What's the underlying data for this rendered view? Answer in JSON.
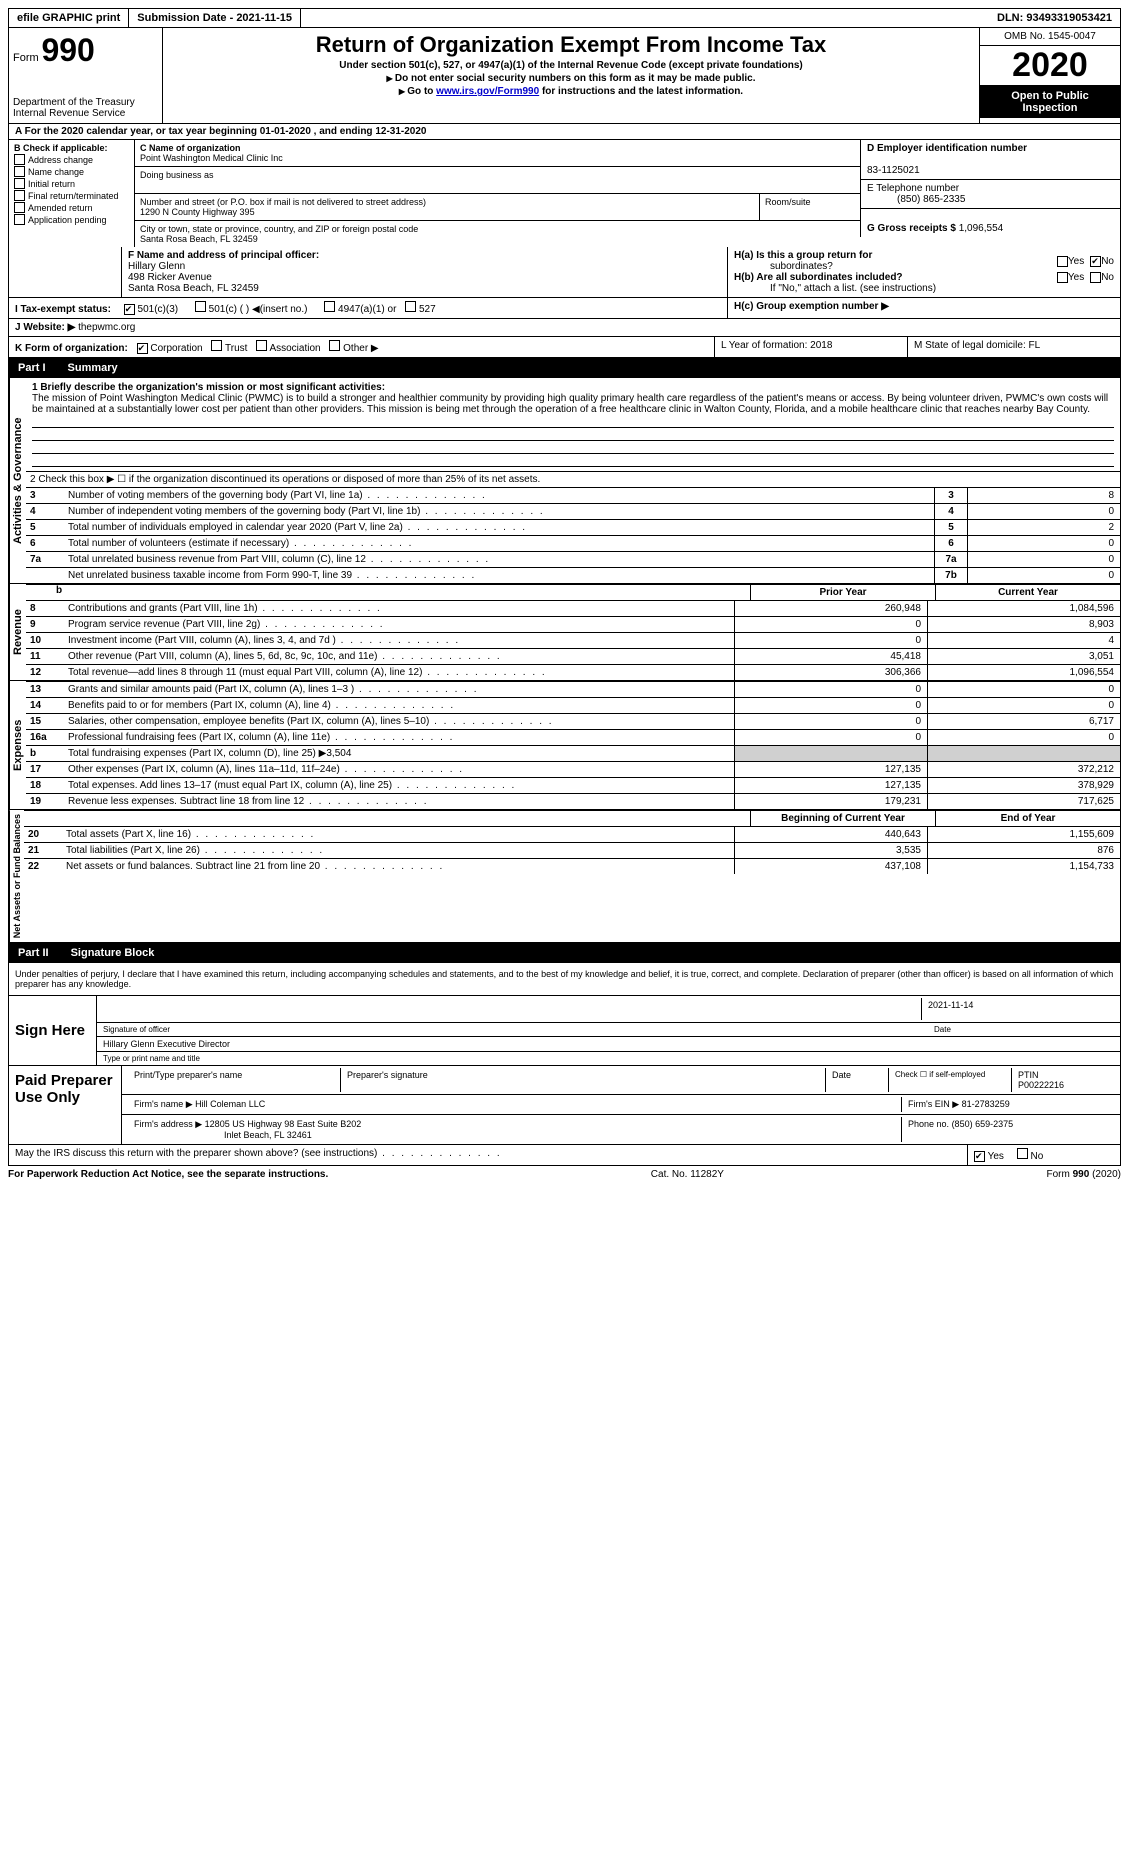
{
  "top": {
    "efile": "efile GRAPHIC print",
    "submission_label": "Submission Date - 2021-11-15",
    "dln_label": "DLN: 93493319053421"
  },
  "header": {
    "form_word": "Form",
    "form_num": "990",
    "dept": "Department of the Treasury\nInternal Revenue Service",
    "title": "Return of Organization Exempt From Income Tax",
    "subtitle1": "Under section 501(c), 527, or 4947(a)(1) of the Internal Revenue Code (except private foundations)",
    "subtitle2": "Do not enter social security numbers on this form as it may be made public.",
    "goto_pre": "Go to ",
    "goto_url": "www.irs.gov/Form990",
    "goto_post": " for instructions and the latest information.",
    "omb": "OMB No. 1545-0047",
    "year": "2020",
    "open1": "Open to Public",
    "open2": "Inspection"
  },
  "rowA": "A For the 2020 calendar year, or tax year beginning 01-01-2020   , and ending 12-31-2020",
  "colB": {
    "label": "B Check if applicable:",
    "items": [
      "Address change",
      "Name change",
      "Initial return",
      "Final return/terminated",
      "Amended return",
      "Application pending"
    ]
  },
  "colC": {
    "name_label": "C Name of organization",
    "name": "Point Washington Medical Clinic Inc",
    "dba_label": "Doing business as",
    "street_label": "Number and street (or P.O. box if mail is not delivered to street address)",
    "street": "1290 N County Highway 395",
    "room_label": "Room/suite",
    "city_label": "City or town, state or province, country, and ZIP or foreign postal code",
    "city": "Santa Rosa Beach, FL  32459"
  },
  "colD": {
    "ein_label": "D Employer identification number",
    "ein": "83-1125021",
    "tel_label": "E Telephone number",
    "tel": "(850) 865-2335",
    "gross_label": "G Gross receipts $",
    "gross": "1,096,554"
  },
  "rowF": {
    "label": "F  Name and address of principal officer:",
    "name": "Hillary Glenn",
    "addr1": "498 Ricker Avenue",
    "addr2": "Santa Rosa Beach, FL  32459"
  },
  "rowH": {
    "ha_label": "H(a)  Is this a group return for",
    "ha_label2": "subordinates?",
    "hb_label": "H(b)  Are all subordinates included?",
    "hb_note": "If \"No,\" attach a list. (see instructions)",
    "hc_label": "H(c)  Group exemption number ▶",
    "yes": "Yes",
    "no": "No"
  },
  "rowI": {
    "label": "I    Tax-exempt status:",
    "opt1": "501(c)(3)",
    "opt2": "501(c) (  )",
    "opt2b": "(insert no.)",
    "opt3": "4947(a)(1) or",
    "opt4": "527"
  },
  "rowJ": {
    "label": "J   Website: ▶",
    "val": "thepwmc.org"
  },
  "rowK": {
    "label": "K Form of organization:",
    "opts": [
      "Corporation",
      "Trust",
      "Association",
      "Other ▶"
    ],
    "L": "L Year of formation: 2018",
    "M": "M State of legal domicile: FL"
  },
  "part1": {
    "num": "Part I",
    "title": "Summary"
  },
  "mission": {
    "label": "1   Briefly describe the organization's mission or most significant activities:",
    "text": "The mission of Point Washington Medical Clinic (PWMC) is to build a stronger and healthier community by providing high quality primary health care regardless of the patient's means or access. By being volunteer driven, PWMC's own costs will be maintained at a substantially lower cost per patient than other providers. This mission is being met through the operation of a free healthcare clinic in Walton County, Florida, and a mobile healthcare clinic that reaches nearby Bay County."
  },
  "checkbox2": "2   Check this box ▶ ☐  if the organization discontinued its operations or disposed of more than 25% of its net assets.",
  "govLines": [
    {
      "n": "3",
      "t": "Number of voting members of the governing body (Part VI, line 1a)",
      "k": "3",
      "v": "8"
    },
    {
      "n": "4",
      "t": "Number of independent voting members of the governing body (Part VI, line 1b)",
      "k": "4",
      "v": "0"
    },
    {
      "n": "5",
      "t": "Total number of individuals employed in calendar year 2020 (Part V, line 2a)",
      "k": "5",
      "v": "2"
    },
    {
      "n": "6",
      "t": "Total number of volunteers (estimate if necessary)",
      "k": "6",
      "v": "0"
    },
    {
      "n": "7a",
      "t": "Total unrelated business revenue from Part VIII, column (C), line 12",
      "k": "7a",
      "v": "0"
    },
    {
      "n": "",
      "t": "Net unrelated business taxable income from Form 990-T, line 39",
      "k": "7b",
      "v": "0"
    }
  ],
  "cols": {
    "prior": "Prior Year",
    "current": "Current Year"
  },
  "revenue": [
    {
      "n": "8",
      "t": "Contributions and grants (Part VIII, line 1h)",
      "p": "260,948",
      "c": "1,084,596"
    },
    {
      "n": "9",
      "t": "Program service revenue (Part VIII, line 2g)",
      "p": "0",
      "c": "8,903"
    },
    {
      "n": "10",
      "t": "Investment income (Part VIII, column (A), lines 3, 4, and 7d )",
      "p": "0",
      "c": "4"
    },
    {
      "n": "11",
      "t": "Other revenue (Part VIII, column (A), lines 5, 6d, 8c, 9c, 10c, and 11e)",
      "p": "45,418",
      "c": "3,051"
    },
    {
      "n": "12",
      "t": "Total revenue—add lines 8 through 11 (must equal Part VIII, column (A), line 12)",
      "p": "306,366",
      "c": "1,096,554"
    }
  ],
  "expenses": [
    {
      "n": "13",
      "t": "Grants and similar amounts paid (Part IX, column (A), lines 1–3 )",
      "p": "0",
      "c": "0"
    },
    {
      "n": "14",
      "t": "Benefits paid to or for members (Part IX, column (A), line 4)",
      "p": "0",
      "c": "0"
    },
    {
      "n": "15",
      "t": "Salaries, other compensation, employee benefits (Part IX, column (A), lines 5–10)",
      "p": "0",
      "c": "6,717"
    },
    {
      "n": "16a",
      "t": "Professional fundraising fees (Part IX, column (A), line 11e)",
      "p": "0",
      "c": "0"
    },
    {
      "n": "b",
      "t": "Total fundraising expenses (Part IX, column (D), line 25) ▶3,504",
      "p": "",
      "c": ""
    },
    {
      "n": "17",
      "t": "Other expenses (Part IX, column (A), lines 11a–11d, 11f–24e)",
      "p": "127,135",
      "c": "372,212"
    },
    {
      "n": "18",
      "t": "Total expenses. Add lines 13–17 (must equal Part IX, column (A), line 25)",
      "p": "127,135",
      "c": "378,929"
    },
    {
      "n": "19",
      "t": "Revenue less expenses. Subtract line 18 from line 12",
      "p": "179,231",
      "c": "717,625"
    }
  ],
  "cols2": {
    "begin": "Beginning of Current Year",
    "end": "End of Year"
  },
  "netassets": [
    {
      "n": "20",
      "t": "Total assets (Part X, line 16)",
      "p": "440,643",
      "c": "1,155,609"
    },
    {
      "n": "21",
      "t": "Total liabilities (Part X, line 26)",
      "p": "3,535",
      "c": "876"
    },
    {
      "n": "22",
      "t": "Net assets or fund balances. Subtract line 21 from line 20",
      "p": "437,108",
      "c": "1,154,733"
    }
  ],
  "part2": {
    "num": "Part II",
    "title": "Signature Block"
  },
  "perjury": "Under penalties of perjury, I declare that I have examined this return, including accompanying schedules and statements, and to the best of my knowledge and belief, it is true, correct, and complete. Declaration of preparer (other than officer) is based on all information of which preparer has any knowledge.",
  "sign": {
    "here": "Sign Here",
    "sig_label": "Signature of officer",
    "date_label": "Date",
    "date": "2021-11-14",
    "name": "Hillary Glenn Executive Director",
    "type_label": "Type or print name and title"
  },
  "paid": {
    "title": "Paid Preparer Use Only",
    "print_label": "Print/Type preparer's name",
    "prep_sig": "Preparer's signature",
    "date": "Date",
    "check_self": "Check ☐ if self-employed",
    "ptin_label": "PTIN",
    "ptin": "P00222216",
    "firm_name_label": "Firm's name    ▶",
    "firm_name": "Hill Coleman LLC",
    "firm_ein_label": "Firm's EIN ▶",
    "firm_ein": "81-2783259",
    "firm_addr_label": "Firm's address ▶",
    "firm_addr1": "12805 US Highway 98 East Suite B202",
    "firm_addr2": "Inlet Beach, FL  32461",
    "phone_label": "Phone no.",
    "phone": "(850) 659-2375"
  },
  "discuss": {
    "text": "May the IRS discuss this return with the preparer shown above? (see instructions)",
    "yes": "Yes",
    "no": "No"
  },
  "footer": {
    "left": "For Paperwork Reduction Act Notice, see the separate instructions.",
    "mid": "Cat. No. 11282Y",
    "right": "Form 990 (2020)"
  },
  "labels": {
    "act_gov": "Activities & Governance",
    "revenue": "Revenue",
    "expenses": "Expenses",
    "net": "Net Assets or Fund Balances"
  }
}
